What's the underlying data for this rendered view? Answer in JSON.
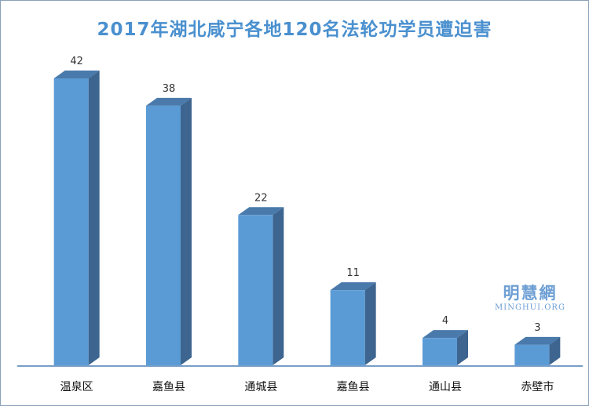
{
  "chart_data": {
    "type": "bar",
    "title": "2017年湖北咸宁各地120名法轮功学员遭迫害",
    "categories": [
      "温泉区",
      "嘉鱼县",
      "通城县",
      "嘉鱼县",
      "通山县",
      "赤壁市"
    ],
    "values": [
      42,
      38,
      22,
      11,
      4,
      3
    ],
    "ylim": [
      0,
      42
    ],
    "grid": false,
    "legend": "none",
    "colors": {
      "bar_front": "#5b9bd5",
      "bar_side": "#3d6590",
      "bar_top": "#4a7aab",
      "axis": "#4a7fb5",
      "title": "#4a90cf"
    }
  },
  "watermark": {
    "cn": "明慧網",
    "en": "MINGHUI.ORG"
  }
}
